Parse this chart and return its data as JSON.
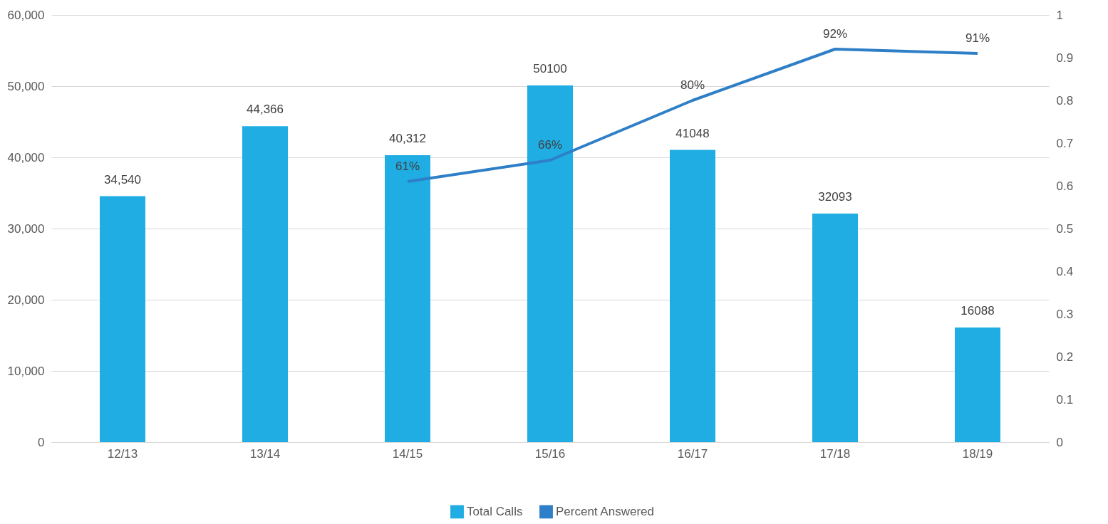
{
  "chart_data": {
    "type": "bar",
    "categories": [
      "12/13",
      "13/14",
      "14/15",
      "15/16",
      "16/17",
      "17/18",
      "18/19"
    ],
    "series": [
      {
        "name": "Total Calls",
        "color": "#1fade3",
        "values": [
          34540,
          44366,
          40312,
          50100,
          41048,
          32093,
          16088
        ],
        "value_labels": [
          "34,540",
          "44,366",
          "40,312",
          "50100",
          "41048",
          "32093",
          "16088"
        ]
      },
      {
        "name": "Percent Answered",
        "type": "line",
        "axis": "y2",
        "color": "#2e7fc7",
        "values": [
          null,
          null,
          0.61,
          0.66,
          0.8,
          0.92,
          0.91
        ],
        "value_labels": [
          null,
          null,
          "61%",
          "66%",
          "80%",
          "92%",
          "91%"
        ]
      }
    ],
    "ylim": [
      0,
      60000
    ],
    "yticks": [
      0,
      {
        "value": 10000,
        "label": "10,000"
      },
      {
        "value": 20000,
        "label": "20,000"
      },
      {
        "value": 30000,
        "label": "30,000"
      },
      {
        "value": 40000,
        "label": "40,000"
      },
      {
        "value": 50000,
        "label": "50,000"
      },
      {
        "value": 60000,
        "label": "60,000"
      }
    ],
    "y2lim": [
      0,
      1
    ],
    "y2ticks": [
      0,
      0.1,
      0.2,
      0.3,
      0.4,
      0.5,
      0.6,
      0.7,
      0.8,
      0.9,
      1
    ],
    "grid": "y",
    "legend": "bottom",
    "marker": "none",
    "line_style": "solid"
  }
}
